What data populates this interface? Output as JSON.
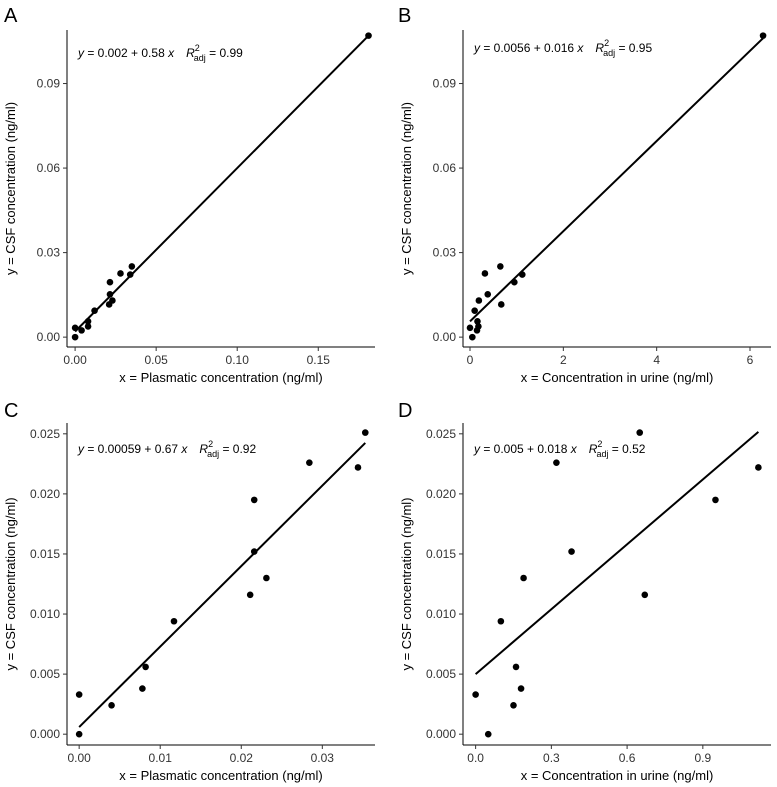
{
  "chart_data": [
    {
      "type": "scatter",
      "panel_label": "A",
      "xlabel": "x = Plasmatic concentration (ng/ml)",
      "ylabel": "y = CSF concentration (ng/ml)",
      "xlim": [
        -0.005,
        0.185
      ],
      "ylim": [
        -0.0035,
        0.109
      ],
      "xticks": [
        0.0,
        0.05,
        0.1,
        0.15
      ],
      "xtick_labels": [
        "0.00",
        "0.05",
        "0.10",
        "0.15"
      ],
      "yticks": [
        0.0,
        0.03,
        0.06,
        0.09
      ],
      "ytick_labels": [
        "0.00",
        "0.03",
        "0.06",
        "0.09"
      ],
      "points": [
        [
          0.0,
          0.0
        ],
        [
          0.0,
          0.0033
        ],
        [
          0.004,
          0.0024
        ],
        [
          0.008,
          0.0038
        ],
        [
          0.008,
          0.0056
        ],
        [
          0.012,
          0.0094
        ],
        [
          0.021,
          0.0116
        ],
        [
          0.0215,
          0.0152
        ],
        [
          0.0215,
          0.0195
        ],
        [
          0.023,
          0.013
        ],
        [
          0.028,
          0.0226
        ],
        [
          0.034,
          0.0222
        ],
        [
          0.035,
          0.0251
        ],
        [
          0.181,
          0.107
        ]
      ],
      "fit": {
        "intercept": 0.002,
        "slope": 0.58,
        "x_range": [
          0.0,
          0.181
        ]
      },
      "equation": {
        "y_var": "y",
        "rhs": " = 0.002 + 0.58 ",
        "x_var": "x",
        "r_symbol": "R",
        "r_sup": "2",
        "r_sub": "adj",
        "r_value": " = 0.99"
      },
      "grid": false
    },
    {
      "type": "scatter",
      "panel_label": "B",
      "xlabel": "x = Concentration in urine (ng/ml)",
      "ylabel": "y = CSF concentration (ng/ml)",
      "xlim": [
        -0.15,
        6.45
      ],
      "ylim": [
        -0.0035,
        0.109
      ],
      "xticks": [
        0,
        2,
        4,
        6
      ],
      "xtick_labels": [
        "0",
        "2",
        "4",
        "6"
      ],
      "yticks": [
        0.0,
        0.03,
        0.06,
        0.09
      ],
      "ytick_labels": [
        "0.00",
        "0.03",
        "0.06",
        "0.09"
      ],
      "points": [
        [
          0.0,
          0.0033
        ],
        [
          0.05,
          0.0
        ],
        [
          0.1,
          0.0094
        ],
        [
          0.15,
          0.0024
        ],
        [
          0.16,
          0.0056
        ],
        [
          0.18,
          0.0038
        ],
        [
          0.19,
          0.013
        ],
        [
          0.32,
          0.0226
        ],
        [
          0.38,
          0.0152
        ],
        [
          0.65,
          0.0251
        ],
        [
          0.67,
          0.0116
        ],
        [
          0.95,
          0.0195
        ],
        [
          1.12,
          0.0222
        ],
        [
          6.28,
          0.107
        ]
      ],
      "fit": {
        "intercept": 0.0056,
        "slope": 0.016,
        "x_range": [
          0.0,
          6.28
        ]
      },
      "equation": {
        "y_var": "y",
        "rhs": " = 0.0056 + 0.016 ",
        "x_var": "x",
        "r_symbol": "R",
        "r_sup": "2",
        "r_sub": "adj",
        "r_value": " = 0.95"
      },
      "grid": false
    },
    {
      "type": "scatter",
      "panel_label": "C",
      "xlabel": "x = Plasmatic concentration (ng/ml)",
      "ylabel": "y = CSF concentration (ng/ml)",
      "xlim": [
        -0.0015,
        0.0365
      ],
      "ylim": [
        -0.0009,
        0.0259
      ],
      "xticks": [
        0.0,
        0.01,
        0.02,
        0.03
      ],
      "xtick_labels": [
        "0.00",
        "0.01",
        "0.02",
        "0.03"
      ],
      "yticks": [
        0.0,
        0.005,
        0.01,
        0.015,
        0.02,
        0.025
      ],
      "ytick_labels": [
        "0.000",
        "0.005",
        "0.010",
        "0.015",
        "0.020",
        "0.025"
      ],
      "points": [
        [
          0.0,
          0.0
        ],
        [
          0.0,
          0.0033
        ],
        [
          0.004,
          0.0024
        ],
        [
          0.0078,
          0.0038
        ],
        [
          0.0082,
          0.0056
        ],
        [
          0.0117,
          0.0094
        ],
        [
          0.0211,
          0.0116
        ],
        [
          0.0216,
          0.0152
        ],
        [
          0.0216,
          0.0195
        ],
        [
          0.0231,
          0.013
        ],
        [
          0.0284,
          0.0226
        ],
        [
          0.0344,
          0.0222
        ],
        [
          0.0353,
          0.0251
        ]
      ],
      "fit": {
        "intercept": 0.00059,
        "slope": 0.67,
        "x_range": [
          0.0,
          0.0353
        ]
      },
      "equation": {
        "y_var": "y",
        "rhs": " = 0.00059 + 0.67 ",
        "x_var": "x",
        "r_symbol": "R",
        "r_sup": "2",
        "r_sub": "adj",
        "r_value": " = 0.92"
      },
      "grid": false
    },
    {
      "type": "scatter",
      "panel_label": "D",
      "xlabel": "x = Concentration in urine (ng/ml)",
      "ylabel": "y = CSF concentration (ng/ml)",
      "xlim": [
        -0.05,
        1.17
      ],
      "ylim": [
        -0.0009,
        0.0259
      ],
      "xticks": [
        0.0,
        0.3,
        0.6,
        0.9
      ],
      "xtick_labels": [
        "0.0",
        "0.3",
        "0.6",
        "0.9"
      ],
      "yticks": [
        0.0,
        0.005,
        0.01,
        0.015,
        0.02,
        0.025
      ],
      "ytick_labels": [
        "0.000",
        "0.005",
        "0.010",
        "0.015",
        "0.020",
        "0.025"
      ],
      "points": [
        [
          0.0,
          0.0033
        ],
        [
          0.05,
          0.0
        ],
        [
          0.1,
          0.0094
        ],
        [
          0.15,
          0.0024
        ],
        [
          0.16,
          0.0056
        ],
        [
          0.18,
          0.0038
        ],
        [
          0.19,
          0.013
        ],
        [
          0.32,
          0.0226
        ],
        [
          0.38,
          0.0152
        ],
        [
          0.65,
          0.0251
        ],
        [
          0.67,
          0.0116
        ],
        [
          0.95,
          0.0195
        ],
        [
          1.12,
          0.0222
        ]
      ],
      "fit": {
        "intercept": 0.005,
        "slope": 0.018,
        "x_range": [
          0.0,
          1.12
        ]
      },
      "equation": {
        "y_var": "y",
        "rhs": " = 0.005 + 0.018 ",
        "x_var": "x",
        "r_symbol": "R",
        "r_sup": "2",
        "r_sub": "adj",
        "r_value": " = 0.52"
      },
      "grid": false
    }
  ]
}
